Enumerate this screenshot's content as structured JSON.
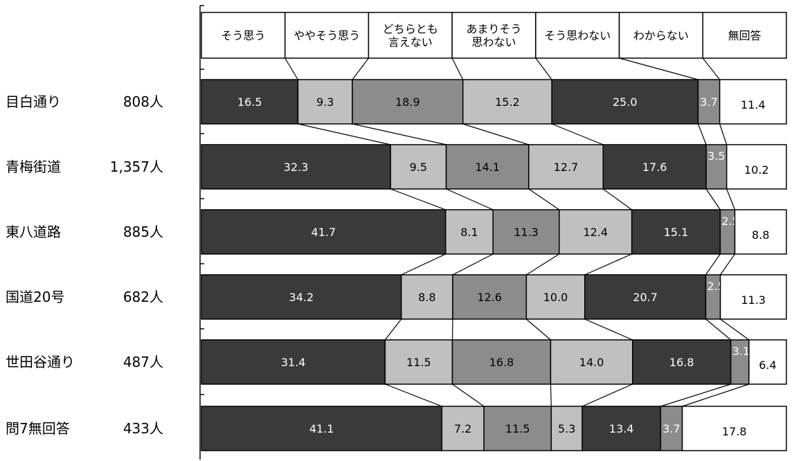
{
  "chart_data": {
    "type": "bar",
    "orientation": "horizontal",
    "stacked": "100%",
    "title": "",
    "xlabel": "",
    "ylabel": "",
    "unit": "%",
    "series": [
      {
        "name": "そう思う",
        "values": [
          16.5,
          32.3,
          41.7,
          34.2,
          31.4,
          41.1
        ],
        "color": "#3a3a3a",
        "label_color": "#ffffff"
      },
      {
        "name": "ややそう思う",
        "values": [
          9.3,
          9.5,
          8.1,
          8.8,
          11.5,
          7.2
        ],
        "color": "#c0c0c0",
        "label_color": "#000000"
      },
      {
        "name": "どちらとも\n言えない",
        "values": [
          18.9,
          14.1,
          11.3,
          12.6,
          16.8,
          11.5
        ],
        "color": "#8c8c8c",
        "label_color": "#000000"
      },
      {
        "name": "あまりそう\n思わない",
        "values": [
          15.2,
          12.7,
          12.4,
          10.0,
          14.0,
          5.3
        ],
        "color": "#c0c0c0",
        "label_color": "#000000"
      },
      {
        "name": "そう思わない",
        "values": [
          25.0,
          17.6,
          15.1,
          20.7,
          16.8,
          13.4
        ],
        "color": "#3a3a3a",
        "label_color": "#ffffff"
      },
      {
        "name": "わからない",
        "values": [
          3.7,
          3.5,
          2.5,
          2.5,
          3.1,
          3.7
        ],
        "color": "#8c8c8c",
        "label_color": "#ffffff"
      },
      {
        "name": "無回答",
        "values": [
          11.4,
          10.2,
          8.8,
          11.3,
          6.4,
          17.8
        ],
        "color": "#ffffff",
        "label_color": "#000000"
      }
    ],
    "categories": [
      {
        "label": "目白通り",
        "count": "808人"
      },
      {
        "label": "青梅街道",
        "count": "1,357人"
      },
      {
        "label": "東八道路",
        "count": "885人"
      },
      {
        "label": "国道20号",
        "count": "682人"
      },
      {
        "label": "世田谷通り",
        "count": "487人"
      },
      {
        "label": "問7無回答",
        "count": "433人"
      }
    ],
    "legend_position": "top",
    "connector_lines": true,
    "grid": false
  }
}
